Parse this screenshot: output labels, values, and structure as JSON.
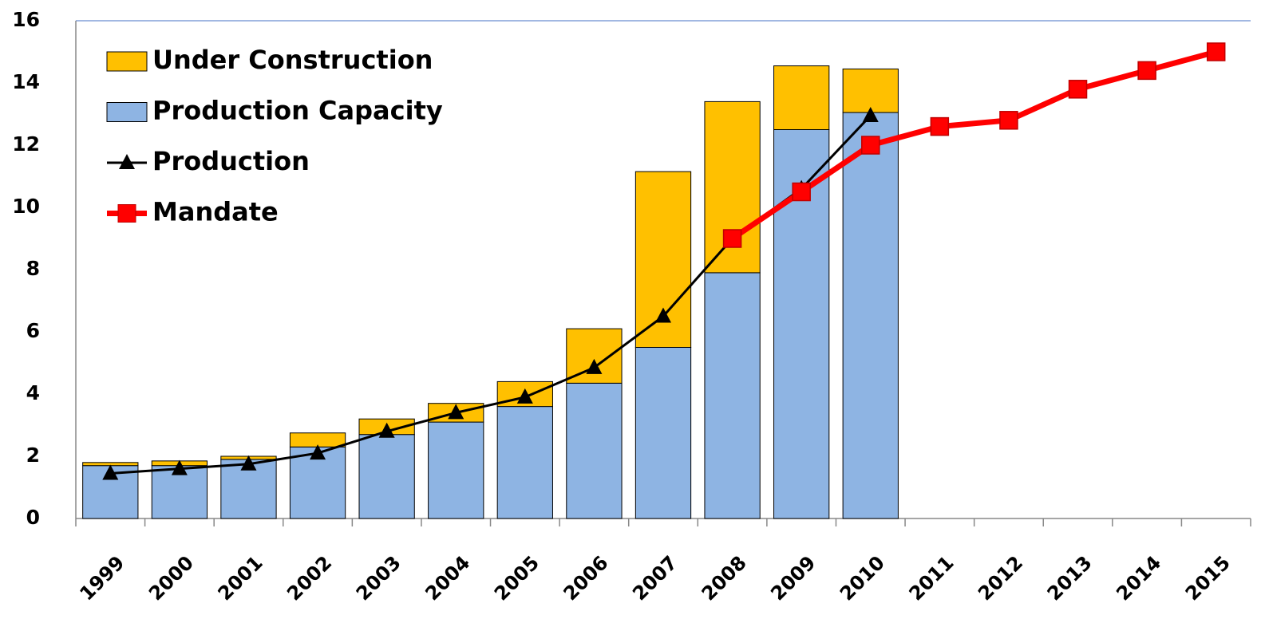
{
  "chart_data": {
    "type": "bar",
    "categories": [
      "1999",
      "2000",
      "2001",
      "2002",
      "2003",
      "2004",
      "2005",
      "2006",
      "2007",
      "2008",
      "2009",
      "2010",
      "2011",
      "2012",
      "2013",
      "2014",
      "2015"
    ],
    "series": [
      {
        "name": "Under Construction",
        "type": "bar",
        "color": "#FFC000",
        "values": [
          0.1,
          0.15,
          0.1,
          0.45,
          0.5,
          0.6,
          0.8,
          1.75,
          5.65,
          5.5,
          2.05,
          1.4,
          null,
          null,
          null,
          null,
          null
        ]
      },
      {
        "name": "Production Capacity",
        "type": "bar",
        "color": "#8EB4E3",
        "values": [
          1.7,
          1.7,
          1.9,
          2.3,
          2.7,
          3.1,
          3.6,
          4.35,
          5.5,
          7.9,
          12.5,
          13.05,
          null,
          null,
          null,
          null,
          null
        ]
      },
      {
        "name": "Production",
        "type": "line",
        "marker": "triangle",
        "color": "#000000",
        "values": [
          1.45,
          1.6,
          1.75,
          2.1,
          2.8,
          3.4,
          3.9,
          4.85,
          6.5,
          9.0,
          10.6,
          12.95,
          null,
          null,
          null,
          null,
          null
        ]
      },
      {
        "name": "Mandate",
        "type": "line",
        "marker": "square",
        "color": "#FF0000",
        "values": [
          null,
          null,
          null,
          null,
          null,
          null,
          null,
          null,
          null,
          9.0,
          10.5,
          12.0,
          12.6,
          12.8,
          13.8,
          14.4,
          15.0
        ]
      }
    ],
    "stacked": true,
    "ylim": [
      0,
      16
    ],
    "yticks": [
      0,
      2,
      4,
      6,
      8,
      10,
      12,
      14,
      16
    ],
    "grid": false,
    "legend": "upper left"
  }
}
